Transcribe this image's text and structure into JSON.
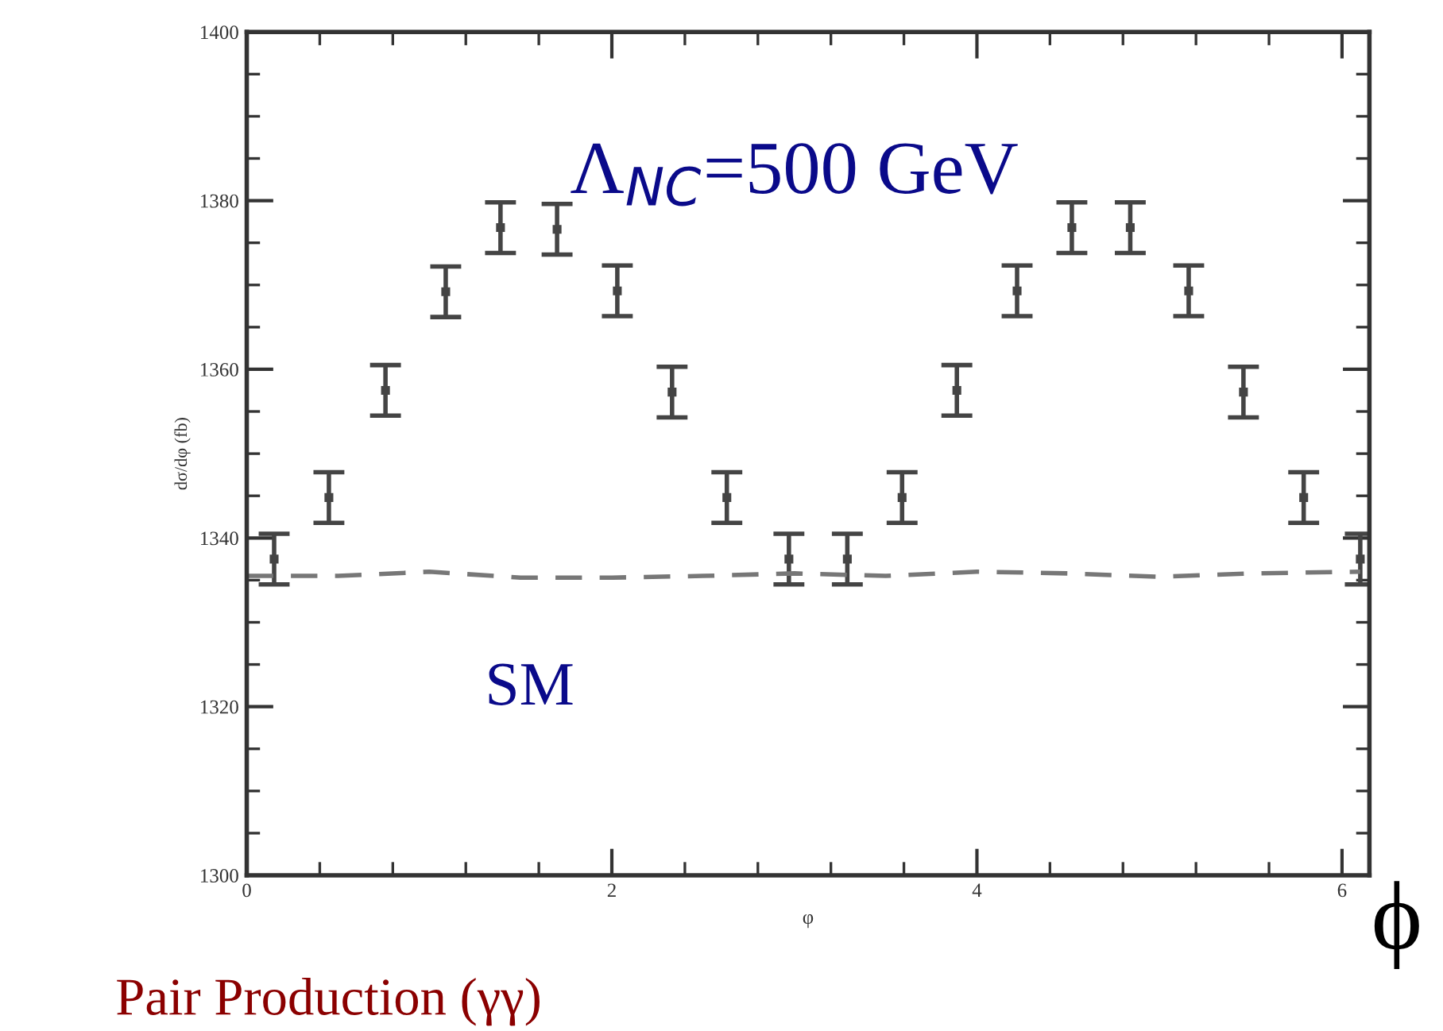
{
  "chart_data": {
    "type": "line",
    "xlabel": "φ",
    "ylabel": "dσ/dφ (fb)",
    "xlim": [
      0,
      6.15
    ],
    "ylim": [
      1300,
      1400
    ],
    "xticks": [
      0,
      2,
      4,
      6
    ],
    "yticks": [
      1300,
      1320,
      1340,
      1360,
      1380,
      1400
    ],
    "grid": false,
    "legend": false,
    "series": [
      {
        "type": "scatter",
        "color": "#444444",
        "x": [
          0.15,
          0.45,
          0.76,
          1.09,
          1.39,
          1.7,
          2.03,
          2.33,
          2.63,
          2.97,
          3.29,
          3.59,
          3.89,
          4.22,
          4.52,
          4.84,
          5.16,
          5.46,
          5.79,
          6.1
        ],
        "values": [
          1337.5,
          1344.8,
          1357.5,
          1369.2,
          1376.8,
          1376.6,
          1369.3,
          1357.3,
          1344.8,
          1337.5,
          1337.5,
          1344.8,
          1357.5,
          1369.3,
          1376.8,
          1376.8,
          1369.3,
          1357.3,
          1344.8,
          1337.5
        ],
        "errors": [
          3,
          3,
          3,
          3,
          3,
          3,
          3,
          3,
          3,
          3,
          3,
          3,
          3,
          3,
          3,
          3,
          3,
          3,
          3,
          3
        ]
      },
      {
        "color": "#777777",
        "line_style": "dashed",
        "x": [
          0,
          0.5,
          1.0,
          1.5,
          2.0,
          2.5,
          3.0,
          3.5,
          4.0,
          4.5,
          5.0,
          5.5,
          6.1
        ],
        "values": [
          1335.5,
          1335.5,
          1336.0,
          1335.3,
          1335.3,
          1335.5,
          1335.8,
          1335.5,
          1336.0,
          1335.8,
          1335.4,
          1335.8,
          1336.0
        ]
      }
    ],
    "annotations": [
      "Λ$_{NC}$=500 GeV",
      "SM",
      "ϕ",
      "Pair Production (γγ)"
    ]
  }
}
